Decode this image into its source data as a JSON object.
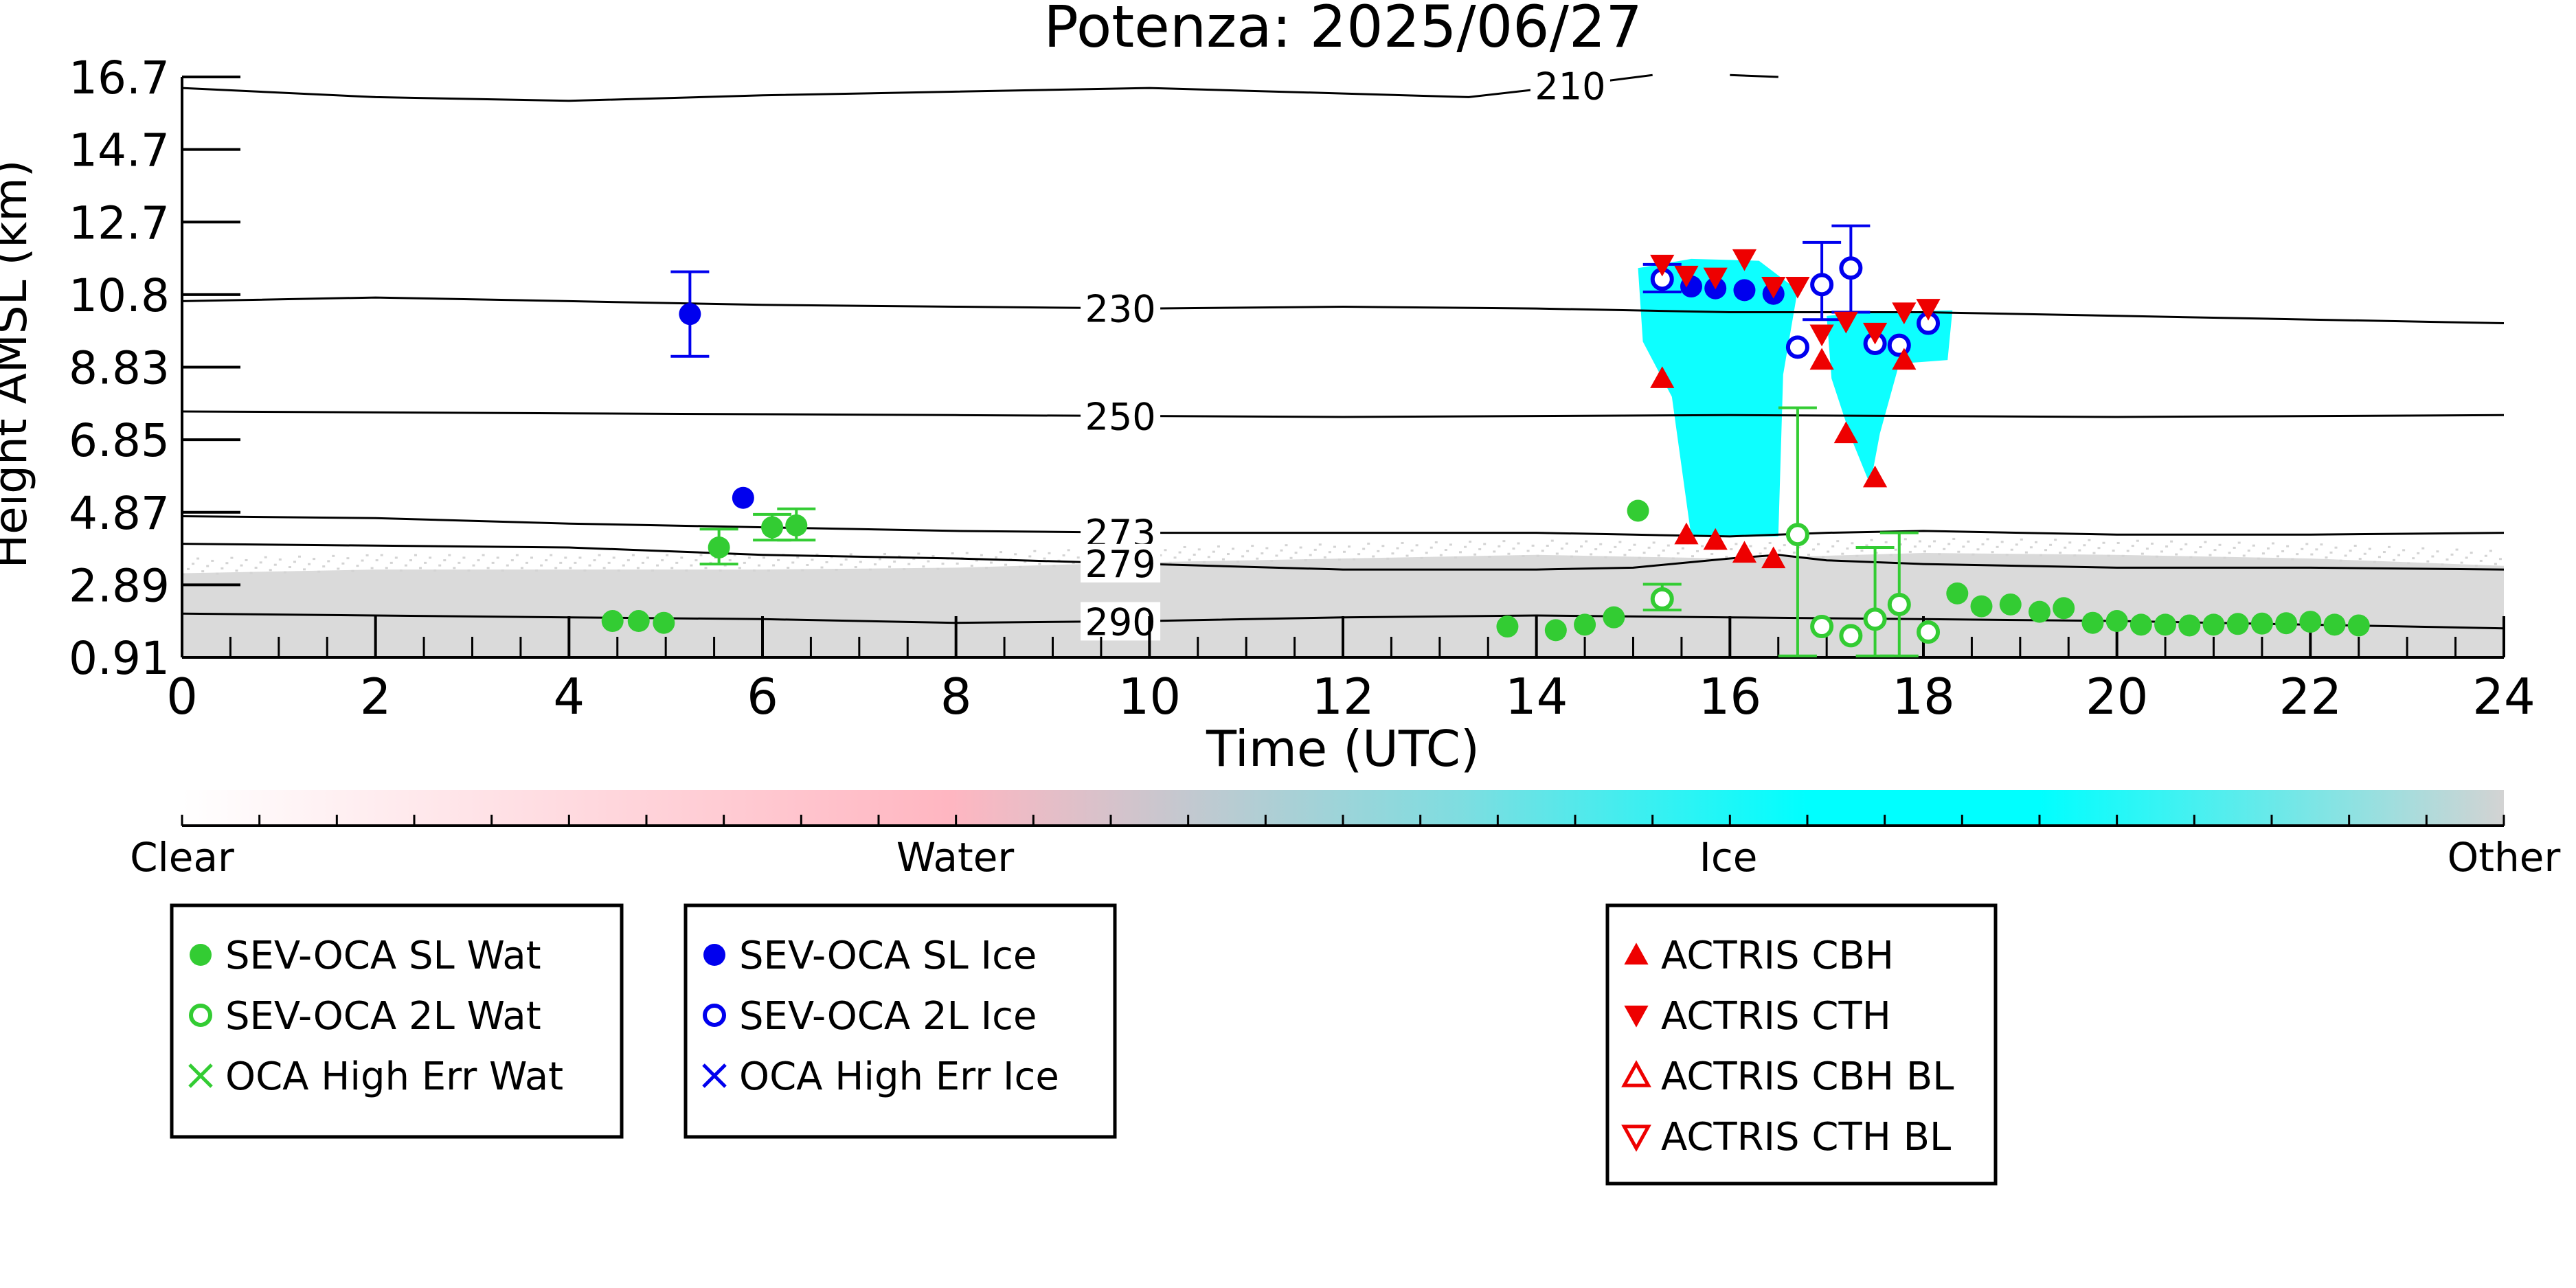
{
  "chart_data": {
    "type": "scatter",
    "title": "Potenza: 2025/06/27",
    "xlabel": "Time (UTC)",
    "ylabel": "Height AMSL (km)",
    "xlim": [
      0,
      24
    ],
    "ylim": [
      0.91,
      16.7
    ],
    "x_ticks": [
      "0",
      "2",
      "4",
      "6",
      "8",
      "10",
      "12",
      "14",
      "16",
      "18",
      "20",
      "22",
      "24"
    ],
    "y_ticks": [
      "0.91",
      "2.89",
      "4.87",
      "6.85",
      "8.83",
      "10.8",
      "12.7",
      "14.7",
      "16.7"
    ],
    "temperature_contours": [
      {
        "label": "210",
        "points": [
          [
            0,
            16.4
          ],
          [
            2,
            16.15
          ],
          [
            4,
            16.05
          ],
          [
            6,
            16.2
          ],
          [
            8,
            16.3
          ],
          [
            10,
            16.4
          ],
          [
            12,
            16.25
          ],
          [
            13.3,
            16.15
          ],
          [
            14.3,
            16.45
          ],
          [
            15.2,
            16.75
          ]
        ]
      },
      {
        "label": "210",
        "points": [
          [
            16.0,
            16.75
          ],
          [
            16.5,
            16.7
          ]
        ]
      },
      {
        "label": "230",
        "points": [
          [
            0,
            10.6
          ],
          [
            2,
            10.7
          ],
          [
            4,
            10.6
          ],
          [
            6,
            10.5
          ],
          [
            8,
            10.45
          ],
          [
            10,
            10.4
          ],
          [
            12,
            10.45
          ],
          [
            14,
            10.4
          ],
          [
            16,
            10.3
          ],
          [
            18,
            10.3
          ],
          [
            20,
            10.2
          ],
          [
            22,
            10.1
          ],
          [
            24,
            10.0
          ]
        ]
      },
      {
        "label": "250",
        "points": [
          [
            0,
            7.6
          ],
          [
            4,
            7.55
          ],
          [
            8,
            7.5
          ],
          [
            12,
            7.45
          ],
          [
            16,
            7.5
          ],
          [
            20,
            7.45
          ],
          [
            24,
            7.5
          ]
        ]
      },
      {
        "label": "273",
        "points": [
          [
            0,
            4.75
          ],
          [
            2,
            4.7
          ],
          [
            4,
            4.55
          ],
          [
            6,
            4.45
          ],
          [
            8,
            4.35
          ],
          [
            10,
            4.3
          ],
          [
            12,
            4.3
          ],
          [
            14,
            4.3
          ],
          [
            15,
            4.25
          ],
          [
            16,
            4.2
          ],
          [
            17,
            4.3
          ],
          [
            18,
            4.35
          ],
          [
            19,
            4.3
          ],
          [
            20,
            4.25
          ],
          [
            22,
            4.25
          ],
          [
            24,
            4.3
          ]
        ]
      },
      {
        "label": "279",
        "points": [
          [
            0,
            4.0
          ],
          [
            2,
            3.95
          ],
          [
            4,
            3.9
          ],
          [
            6,
            3.7
          ],
          [
            8,
            3.6
          ],
          [
            10,
            3.45
          ],
          [
            12,
            3.3
          ],
          [
            14,
            3.3
          ],
          [
            15,
            3.35
          ],
          [
            16,
            3.6
          ],
          [
            16.5,
            3.7
          ],
          [
            17,
            3.55
          ],
          [
            18,
            3.45
          ],
          [
            20,
            3.35
          ],
          [
            22,
            3.35
          ],
          [
            24,
            3.3
          ]
        ]
      },
      {
        "label": "290",
        "points": [
          [
            0,
            2.1
          ],
          [
            2,
            2.05
          ],
          [
            4,
            2.0
          ],
          [
            6,
            1.95
          ],
          [
            8,
            1.85
          ],
          [
            10,
            1.9
          ],
          [
            12,
            2.0
          ],
          [
            14,
            2.05
          ],
          [
            16,
            2.0
          ],
          [
            18,
            1.95
          ],
          [
            20,
            1.9
          ],
          [
            22,
            1.8
          ],
          [
            24,
            1.7
          ]
        ]
      }
    ],
    "colorbar": {
      "labels": [
        "Clear",
        "Water",
        "Ice",
        "Other"
      ],
      "colors": [
        "#ffffff",
        "#ffb6c1",
        "#00ffff",
        "#d3d3d3"
      ]
    },
    "series": [
      {
        "name": "SEV-OCA SL Wat",
        "marker": "filled-circle",
        "color": "#33cc33",
        "points": [
          {
            "x": 4.45,
            "y": 1.9
          },
          {
            "x": 4.72,
            "y": 1.9
          },
          {
            "x": 4.98,
            "y": 1.85
          },
          {
            "x": 5.55,
            "y": 3.9,
            "ylo": 3.45,
            "yhi": 4.4
          },
          {
            "x": 6.1,
            "y": 4.45,
            "ylo": 4.1,
            "yhi": 4.8
          },
          {
            "x": 6.35,
            "y": 4.5,
            "ylo": 4.1,
            "yhi": 4.95
          },
          {
            "x": 15.05,
            "y": 4.9
          },
          {
            "x": 13.7,
            "y": 1.75
          },
          {
            "x": 14.2,
            "y": 1.65
          },
          {
            "x": 14.5,
            "y": 1.8
          },
          {
            "x": 14.8,
            "y": 2.0
          },
          {
            "x": 18.35,
            "y": 2.65
          },
          {
            "x": 18.6,
            "y": 2.3
          },
          {
            "x": 18.9,
            "y": 2.35
          },
          {
            "x": 19.2,
            "y": 2.15
          },
          {
            "x": 19.45,
            "y": 2.25
          },
          {
            "x": 19.75,
            "y": 1.85
          },
          {
            "x": 20.0,
            "y": 1.9
          },
          {
            "x": 20.25,
            "y": 1.8
          },
          {
            "x": 20.5,
            "y": 1.8
          },
          {
            "x": 20.75,
            "y": 1.78
          },
          {
            "x": 21.0,
            "y": 1.8
          },
          {
            "x": 21.25,
            "y": 1.82
          },
          {
            "x": 21.5,
            "y": 1.83
          },
          {
            "x": 21.75,
            "y": 1.84
          },
          {
            "x": 22.0,
            "y": 1.88
          },
          {
            "x": 22.25,
            "y": 1.8
          },
          {
            "x": 22.5,
            "y": 1.78
          }
        ]
      },
      {
        "name": "SEV-OCA 2L Wat",
        "marker": "open-circle",
        "color": "#33cc33",
        "points": [
          {
            "x": 15.3,
            "y": 2.5,
            "ylo": 2.2,
            "yhi": 2.9
          },
          {
            "x": 16.7,
            "y": 4.25,
            "ylo": 0.95,
            "yhi": 7.7
          },
          {
            "x": 16.95,
            "y": 1.75
          },
          {
            "x": 17.25,
            "y": 1.5
          },
          {
            "x": 17.5,
            "y": 1.95,
            "ylo": 0.95,
            "yhi": 3.9
          },
          {
            "x": 17.75,
            "y": 2.35,
            "ylo": 0.95,
            "yhi": 4.3
          },
          {
            "x": 18.05,
            "y": 1.6
          }
        ]
      },
      {
        "name": "OCA High Err Wat",
        "marker": "x",
        "color": "#33cc33",
        "points": []
      },
      {
        "name": "SEV-OCA SL Ice",
        "marker": "filled-circle",
        "color": "#0000ee",
        "points": [
          {
            "x": 5.25,
            "y": 10.25,
            "ylo": 9.1,
            "yhi": 11.4
          },
          {
            "x": 5.8,
            "y": 5.25
          },
          {
            "x": 15.6,
            "y": 11.0
          },
          {
            "x": 15.85,
            "y": 10.95
          },
          {
            "x": 16.15,
            "y": 10.9
          },
          {
            "x": 16.45,
            "y": 10.8
          }
        ]
      },
      {
        "name": "SEV-OCA 2L Ice",
        "marker": "open-circle",
        "color": "#0000ee",
        "points": [
          {
            "x": 15.3,
            "y": 11.2,
            "ylo": 10.85,
            "yhi": 11.6
          },
          {
            "x": 16.7,
            "y": 9.35
          },
          {
            "x": 16.95,
            "y": 11.05,
            "ylo": 10.1,
            "yhi": 12.2
          },
          {
            "x": 17.25,
            "y": 11.5,
            "ylo": 10.3,
            "yhi": 12.65
          },
          {
            "x": 17.5,
            "y": 9.45
          },
          {
            "x": 17.75,
            "y": 9.4
          },
          {
            "x": 18.05,
            "y": 10.0
          }
        ]
      },
      {
        "name": "OCA High Err Ice",
        "marker": "x",
        "color": "#0000ee",
        "points": []
      },
      {
        "name": "ACTRIS CBH",
        "marker": "triangle-up-filled",
        "color": "#ee0000",
        "points": [
          {
            "x": 15.3,
            "y": 8.5
          },
          {
            "x": 15.55,
            "y": 4.25
          },
          {
            "x": 15.85,
            "y": 4.1
          },
          {
            "x": 16.15,
            "y": 3.75
          },
          {
            "x": 16.45,
            "y": 3.6
          },
          {
            "x": 16.95,
            "y": 9.0
          },
          {
            "x": 17.2,
            "y": 7.0
          },
          {
            "x": 17.5,
            "y": 5.8
          },
          {
            "x": 17.8,
            "y": 9.0
          }
        ]
      },
      {
        "name": "ACTRIS CTH",
        "marker": "triangle-down-filled",
        "color": "#ee0000",
        "points": [
          {
            "x": 15.3,
            "y": 11.6
          },
          {
            "x": 15.55,
            "y": 11.3
          },
          {
            "x": 15.85,
            "y": 11.25
          },
          {
            "x": 16.15,
            "y": 11.75
          },
          {
            "x": 16.45,
            "y": 11.0
          },
          {
            "x": 16.7,
            "y": 11.0
          },
          {
            "x": 16.95,
            "y": 9.7
          },
          {
            "x": 17.2,
            "y": 10.05
          },
          {
            "x": 17.5,
            "y": 9.75
          },
          {
            "x": 17.8,
            "y": 10.3
          },
          {
            "x": 18.05,
            "y": 10.4
          }
        ]
      },
      {
        "name": "ACTRIS CBH BL",
        "marker": "triangle-up-open",
        "color": "#ee0000",
        "points": []
      },
      {
        "name": "ACTRIS CTH BL",
        "marker": "triangle-down-open",
        "color": "#ee0000",
        "points": []
      }
    ],
    "legend_groups": [
      [
        "SEV-OCA SL Wat",
        "SEV-OCA 2L Wat",
        "OCA High Err Wat"
      ],
      [
        "SEV-OCA SL Ice",
        "SEV-OCA 2L Ice",
        "OCA High Err Ice"
      ],
      [
        "ACTRIS CBH",
        "ACTRIS CTH",
        "ACTRIS CBH BL",
        "ACTRIS CTH BL"
      ]
    ],
    "legend_placement": "bottom",
    "background_classification": {
      "other_layer": [
        [
          0,
          3.2
        ],
        [
          2,
          3.3
        ],
        [
          4,
          3.3
        ],
        [
          6,
          3.3
        ],
        [
          8,
          3.35
        ],
        [
          10,
          3.5
        ],
        [
          12,
          3.6
        ],
        [
          14,
          3.7
        ],
        [
          16,
          3.6
        ],
        [
          18,
          3.75
        ],
        [
          20,
          3.7
        ],
        [
          22,
          3.6
        ],
        [
          24,
          3.4
        ]
      ],
      "ice_regions": [
        [
          [
            15.05,
            11.5
          ],
          [
            15.6,
            11.75
          ],
          [
            16.3,
            11.7
          ],
          [
            16.7,
            10.9
          ],
          [
            16.55,
            8.6
          ],
          [
            16.5,
            4.2
          ],
          [
            15.6,
            4.2
          ],
          [
            15.4,
            8.0
          ],
          [
            15.1,
            9.5
          ]
        ],
        [
          [
            17.0,
            10.2
          ],
          [
            17.4,
            10.3
          ],
          [
            18.3,
            10.35
          ],
          [
            18.25,
            9.0
          ],
          [
            17.75,
            8.9
          ],
          [
            17.55,
            7.0
          ],
          [
            17.45,
            5.6
          ],
          [
            17.25,
            6.9
          ],
          [
            17.05,
            8.5
          ]
        ]
      ]
    }
  }
}
